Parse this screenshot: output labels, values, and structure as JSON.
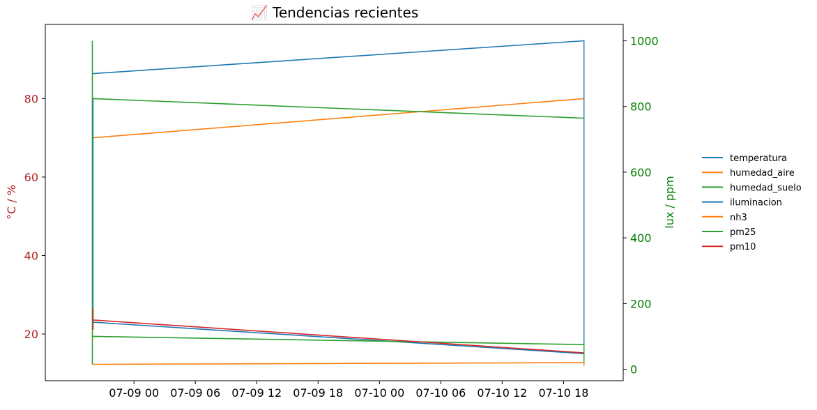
{
  "chart_data": {
    "type": "line",
    "title": "📈 Tendencias recientes",
    "x_ticks": [
      {
        "value": "2025-07-09T00:00",
        "label": "07-09 00"
      },
      {
        "value": "2025-07-09T06:00",
        "label": "07-09 06"
      },
      {
        "value": "2025-07-09T12:00",
        "label": "07-09 12"
      },
      {
        "value": "2025-07-09T18:00",
        "label": "07-09 18"
      },
      {
        "value": "2025-07-10T00:00",
        "label": "07-10 00"
      },
      {
        "value": "2025-07-10T06:00",
        "label": "07-10 06"
      },
      {
        "value": "2025-07-10T12:00",
        "label": "07-10 12"
      },
      {
        "value": "2025-07-10T18:00",
        "label": "07-10 18"
      }
    ],
    "xlim": [
      "2025-07-08T15:20",
      "2025-07-10T23:50"
    ],
    "y_left": {
      "label": "°C / %",
      "color": "#b22222",
      "ylim": [
        8.1,
        98.9
      ],
      "ticks": [
        20,
        40,
        60,
        80
      ]
    },
    "y_right": {
      "label": "lux / ppm",
      "color": "#008000",
      "ylim": [
        -35,
        1050
      ],
      "ticks": [
        0,
        200,
        400,
        600,
        800,
        1000
      ]
    },
    "legend": {
      "position": "right"
    },
    "grid": false,
    "series": [
      {
        "name": "temperatura",
        "axis": "left",
        "color": "#1f77b4",
        "points": [
          {
            "x": "2025-07-08T20:00",
            "y": 23
          },
          {
            "x": "2025-07-10T20:00",
            "y": 15
          }
        ]
      },
      {
        "name": "humedad_aire",
        "axis": "left",
        "color": "#ff7f0e",
        "points": [
          {
            "x": "2025-07-08T20:00",
            "y": 70
          },
          {
            "x": "2025-07-10T20:00",
            "y": 80
          }
        ]
      },
      {
        "name": "humedad_suelo",
        "axis": "left",
        "color": "#2ca02c",
        "points": [
          {
            "x": "2025-07-08T20:00",
            "y": 80
          },
          {
            "x": "2025-07-10T20:00",
            "y": 75
          }
        ]
      },
      {
        "name": "iluminacion",
        "axis": "right",
        "color": "#1f77b4",
        "points": [
          {
            "x": "2025-07-08T20:00",
            "y": 900
          },
          {
            "x": "2025-07-10T20:00",
            "y": 1000
          }
        ]
      },
      {
        "name": "nh3",
        "axis": "right",
        "color": "#ff7f0e",
        "points": [
          {
            "x": "2025-07-08T20:00",
            "y": 15
          },
          {
            "x": "2025-07-10T20:00",
            "y": 20
          }
        ]
      },
      {
        "name": "pm25",
        "axis": "right",
        "color": "#2ca02c",
        "points": [
          {
            "x": "2025-07-08T20:00",
            "y": 100
          },
          {
            "x": "2025-07-10T20:00",
            "y": 75
          }
        ]
      },
      {
        "name": "pm10",
        "axis": "right",
        "color": "#d62728",
        "points": [
          {
            "x": "2025-07-08T20:00",
            "y": 150
          },
          {
            "x": "2025-07-10T20:00",
            "y": 50
          }
        ]
      }
    ]
  }
}
